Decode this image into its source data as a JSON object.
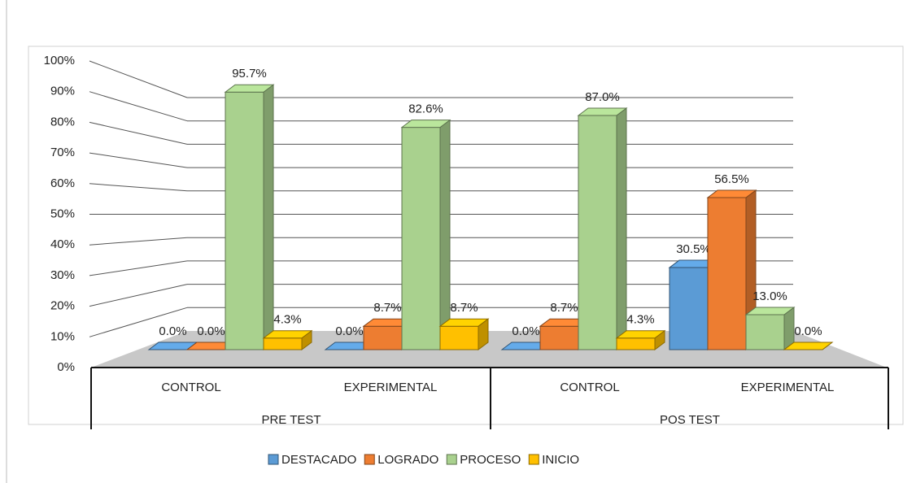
{
  "chart_data": {
    "type": "bar3d",
    "groups": [
      "PRE TEST",
      "POS TEST"
    ],
    "categories": [
      "CONTROL",
      "EXPERIMENTAL",
      "CONTROL",
      "EXPERIMENTAL"
    ],
    "series": [
      {
        "name": "DESTACADO",
        "color": "#5b9bd5",
        "values": [
          0.0,
          0.0,
          0.0,
          30.5
        ],
        "value_labels": [
          "0.0%",
          "0.0%",
          "0.0%",
          "30.5%"
        ]
      },
      {
        "name": "LOGRADO",
        "color": "#ed7d31",
        "values": [
          0.0,
          8.7,
          8.7,
          56.5
        ],
        "value_labels": [
          "0.0%",
          "8.7%",
          "8.7%",
          "56.5%"
        ]
      },
      {
        "name": "PROCESO",
        "color": "#a9d18e",
        "values": [
          95.7,
          82.6,
          87.0,
          13.0
        ],
        "value_labels": [
          "95.7%",
          "82.6%",
          "87.0%",
          "13.0%"
        ]
      },
      {
        "name": "INICIO",
        "color": "#ffc000",
        "values": [
          4.3,
          8.7,
          4.3,
          0.0
        ],
        "value_labels": [
          "4.3%",
          "8.7%",
          "4.3%",
          "0.0%"
        ]
      }
    ],
    "ylim": [
      0,
      100
    ],
    "yticks": [
      {
        "value": 0,
        "label": "0%"
      },
      {
        "value": 10,
        "label": "10%"
      },
      {
        "value": 20,
        "label": "20%"
      },
      {
        "value": 30,
        "label": "30%"
      },
      {
        "value": 40,
        "label": "40%"
      },
      {
        "value": 50,
        "label": "50%"
      },
      {
        "value": 60,
        "label": "60%"
      },
      {
        "value": 70,
        "label": "70%"
      },
      {
        "value": 80,
        "label": "80%"
      },
      {
        "value": 90,
        "label": "90%"
      },
      {
        "value": 100,
        "label": "100%"
      }
    ],
    "grid": true,
    "legend": "bottom"
  }
}
